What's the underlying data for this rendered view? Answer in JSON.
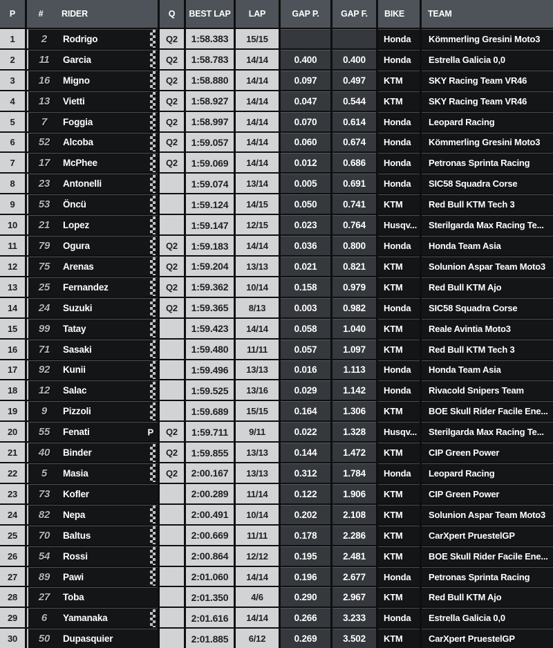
{
  "columns": {
    "p": "P",
    "num": "#",
    "rider": "RIDER",
    "q": "Q",
    "best": "BEST LAP",
    "lap": "LAP",
    "gap_p": "GAP P.",
    "gap_f": "GAP F.",
    "bike": "BIKE",
    "team": "TEAM"
  },
  "colors": {
    "header_bg": "#4d5358",
    "light_cell_bg": "#d2d3d4",
    "gap_cell_bg": "#35383c",
    "black_cell_bg": "#141517",
    "grid_bg": "#0f0f10"
  },
  "rows": [
    {
      "p": "1",
      "num": "2",
      "rider": "Rodrigo",
      "marker": "checker",
      "marker_label": "",
      "q": "Q2",
      "best": "1:58.383",
      "lap": "15/15",
      "gap_p": "",
      "gap_f": "",
      "bike": "Honda",
      "team": "Kömmerling Gresini Moto3"
    },
    {
      "p": "2",
      "num": "11",
      "rider": "Garcia",
      "marker": "checker",
      "marker_label": "",
      "q": "Q2",
      "best": "1:58.783",
      "lap": "14/14",
      "gap_p": "0.400",
      "gap_f": "0.400",
      "bike": "Honda",
      "team": "Estrella Galicia 0,0"
    },
    {
      "p": "3",
      "num": "16",
      "rider": "Migno",
      "marker": "checker",
      "marker_label": "",
      "q": "Q2",
      "best": "1:58.880",
      "lap": "14/14",
      "gap_p": "0.097",
      "gap_f": "0.497",
      "bike": "KTM",
      "team": "SKY Racing Team VR46"
    },
    {
      "p": "4",
      "num": "13",
      "rider": "Vietti",
      "marker": "checker",
      "marker_label": "",
      "q": "Q2",
      "best": "1:58.927",
      "lap": "14/14",
      "gap_p": "0.047",
      "gap_f": "0.544",
      "bike": "KTM",
      "team": "SKY Racing Team VR46"
    },
    {
      "p": "5",
      "num": "7",
      "rider": "Foggia",
      "marker": "checker",
      "marker_label": "",
      "q": "Q2",
      "best": "1:58.997",
      "lap": "14/14",
      "gap_p": "0.070",
      "gap_f": "0.614",
      "bike": "Honda",
      "team": "Leopard Racing"
    },
    {
      "p": "6",
      "num": "52",
      "rider": "Alcoba",
      "marker": "checker",
      "marker_label": "",
      "q": "Q2",
      "best": "1:59.057",
      "lap": "14/14",
      "gap_p": "0.060",
      "gap_f": "0.674",
      "bike": "Honda",
      "team": "Kömmerling Gresini Moto3"
    },
    {
      "p": "7",
      "num": "17",
      "rider": "McPhee",
      "marker": "checker",
      "marker_label": "",
      "q": "Q2",
      "best": "1:59.069",
      "lap": "14/14",
      "gap_p": "0.012",
      "gap_f": "0.686",
      "bike": "Honda",
      "team": "Petronas Sprinta Racing"
    },
    {
      "p": "8",
      "num": "23",
      "rider": "Antonelli",
      "marker": "checker",
      "marker_label": "",
      "q": "",
      "best": "1:59.074",
      "lap": "13/14",
      "gap_p": "0.005",
      "gap_f": "0.691",
      "bike": "Honda",
      "team": "SIC58 Squadra Corse"
    },
    {
      "p": "9",
      "num": "53",
      "rider": "Öncü",
      "marker": "checker",
      "marker_label": "",
      "q": "",
      "best": "1:59.124",
      "lap": "14/15",
      "gap_p": "0.050",
      "gap_f": "0.741",
      "bike": "KTM",
      "team": "Red Bull KTM Tech 3"
    },
    {
      "p": "10",
      "num": "21",
      "rider": "Lopez",
      "marker": "checker",
      "marker_label": "",
      "q": "",
      "best": "1:59.147",
      "lap": "12/15",
      "gap_p": "0.023",
      "gap_f": "0.764",
      "bike": "Husqv...",
      "team": "Sterilgarda Max Racing Te..."
    },
    {
      "p": "11",
      "num": "79",
      "rider": "Ogura",
      "marker": "checker",
      "marker_label": "",
      "q": "Q2",
      "best": "1:59.183",
      "lap": "14/14",
      "gap_p": "0.036",
      "gap_f": "0.800",
      "bike": "Honda",
      "team": "Honda Team Asia"
    },
    {
      "p": "12",
      "num": "75",
      "rider": "Arenas",
      "marker": "checker",
      "marker_label": "",
      "q": "Q2",
      "best": "1:59.204",
      "lap": "13/13",
      "gap_p": "0.021",
      "gap_f": "0.821",
      "bike": "KTM",
      "team": "Solunion Aspar Team Moto3"
    },
    {
      "p": "13",
      "num": "25",
      "rider": "Fernandez",
      "marker": "checker",
      "marker_label": "",
      "q": "Q2",
      "best": "1:59.362",
      "lap": "10/14",
      "gap_p": "0.158",
      "gap_f": "0.979",
      "bike": "KTM",
      "team": "Red Bull KTM Ajo"
    },
    {
      "p": "14",
      "num": "24",
      "rider": "Suzuki",
      "marker": "checker",
      "marker_label": "",
      "q": "Q2",
      "best": "1:59.365",
      "lap": "8/13",
      "gap_p": "0.003",
      "gap_f": "0.982",
      "bike": "Honda",
      "team": "SIC58 Squadra Corse"
    },
    {
      "p": "15",
      "num": "99",
      "rider": "Tatay",
      "marker": "checker",
      "marker_label": "",
      "q": "",
      "best": "1:59.423",
      "lap": "14/14",
      "gap_p": "0.058",
      "gap_f": "1.040",
      "bike": "KTM",
      "team": "Reale Avintia Moto3"
    },
    {
      "p": "16",
      "num": "71",
      "rider": "Sasaki",
      "marker": "checker",
      "marker_label": "",
      "q": "",
      "best": "1:59.480",
      "lap": "11/11",
      "gap_p": "0.057",
      "gap_f": "1.097",
      "bike": "KTM",
      "team": "Red Bull KTM Tech 3"
    },
    {
      "p": "17",
      "num": "92",
      "rider": "Kunii",
      "marker": "checker",
      "marker_label": "",
      "q": "",
      "best": "1:59.496",
      "lap": "13/13",
      "gap_p": "0.016",
      "gap_f": "1.113",
      "bike": "Honda",
      "team": "Honda Team Asia"
    },
    {
      "p": "18",
      "num": "12",
      "rider": "Salac",
      "marker": "checker",
      "marker_label": "",
      "q": "",
      "best": "1:59.525",
      "lap": "13/16",
      "gap_p": "0.029",
      "gap_f": "1.142",
      "bike": "Honda",
      "team": "Rivacold Snipers Team"
    },
    {
      "p": "19",
      "num": "9",
      "rider": "Pizzoli",
      "marker": "checker",
      "marker_label": "",
      "q": "",
      "best": "1:59.689",
      "lap": "15/15",
      "gap_p": "0.164",
      "gap_f": "1.306",
      "bike": "KTM",
      "team": "BOE Skull Rider Facile Ene..."
    },
    {
      "p": "20",
      "num": "55",
      "rider": "Fenati",
      "marker": "label",
      "marker_label": "P",
      "q": "Q2",
      "best": "1:59.711",
      "lap": "9/11",
      "gap_p": "0.022",
      "gap_f": "1.328",
      "bike": "Husqv...",
      "team": "Sterilgarda Max Racing Te..."
    },
    {
      "p": "21",
      "num": "40",
      "rider": "Binder",
      "marker": "checker",
      "marker_label": "",
      "q": "Q2",
      "best": "1:59.855",
      "lap": "13/13",
      "gap_p": "0.144",
      "gap_f": "1.472",
      "bike": "KTM",
      "team": "CIP Green Power"
    },
    {
      "p": "22",
      "num": "5",
      "rider": "Masia",
      "marker": "checker",
      "marker_label": "",
      "q": "Q2",
      "best": "2:00.167",
      "lap": "13/13",
      "gap_p": "0.312",
      "gap_f": "1.784",
      "bike": "Honda",
      "team": "Leopard Racing"
    },
    {
      "p": "23",
      "num": "73",
      "rider": "Kofler",
      "marker": "none",
      "marker_label": "",
      "q": "",
      "best": "2:00.289",
      "lap": "11/14",
      "gap_p": "0.122",
      "gap_f": "1.906",
      "bike": "KTM",
      "team": "CIP Green Power"
    },
    {
      "p": "24",
      "num": "82",
      "rider": "Nepa",
      "marker": "checker",
      "marker_label": "",
      "q": "",
      "best": "2:00.491",
      "lap": "10/14",
      "gap_p": "0.202",
      "gap_f": "2.108",
      "bike": "KTM",
      "team": "Solunion Aspar Team Moto3"
    },
    {
      "p": "25",
      "num": "70",
      "rider": "Baltus",
      "marker": "checker",
      "marker_label": "",
      "q": "",
      "best": "2:00.669",
      "lap": "11/11",
      "gap_p": "0.178",
      "gap_f": "2.286",
      "bike": "KTM",
      "team": "CarXpert PruestelGP"
    },
    {
      "p": "26",
      "num": "54",
      "rider": "Rossi",
      "marker": "checker",
      "marker_label": "",
      "q": "",
      "best": "2:00.864",
      "lap": "12/12",
      "gap_p": "0.195",
      "gap_f": "2.481",
      "bike": "KTM",
      "team": "BOE Skull Rider Facile Ene..."
    },
    {
      "p": "27",
      "num": "89",
      "rider": "Pawi",
      "marker": "checker",
      "marker_label": "",
      "q": "",
      "best": "2:01.060",
      "lap": "14/14",
      "gap_p": "0.196",
      "gap_f": "2.677",
      "bike": "Honda",
      "team": "Petronas Sprinta Racing"
    },
    {
      "p": "28",
      "num": "27",
      "rider": "Toba",
      "marker": "none",
      "marker_label": "",
      "q": "",
      "best": "2:01.350",
      "lap": "4/6",
      "gap_p": "0.290",
      "gap_f": "2.967",
      "bike": "KTM",
      "team": "Red Bull KTM Ajo"
    },
    {
      "p": "29",
      "num": "6",
      "rider": "Yamanaka",
      "marker": "checker",
      "marker_label": "",
      "q": "",
      "best": "2:01.616",
      "lap": "14/14",
      "gap_p": "0.266",
      "gap_f": "3.233",
      "bike": "Honda",
      "team": "Estrella Galicia 0,0"
    },
    {
      "p": "30",
      "num": "50",
      "rider": "Dupasquier",
      "marker": "none",
      "marker_label": "",
      "q": "",
      "best": "2:01.885",
      "lap": "6/12",
      "gap_p": "0.269",
      "gap_f": "3.502",
      "bike": "KTM",
      "team": "CarXpert PruestelGP"
    }
  ]
}
